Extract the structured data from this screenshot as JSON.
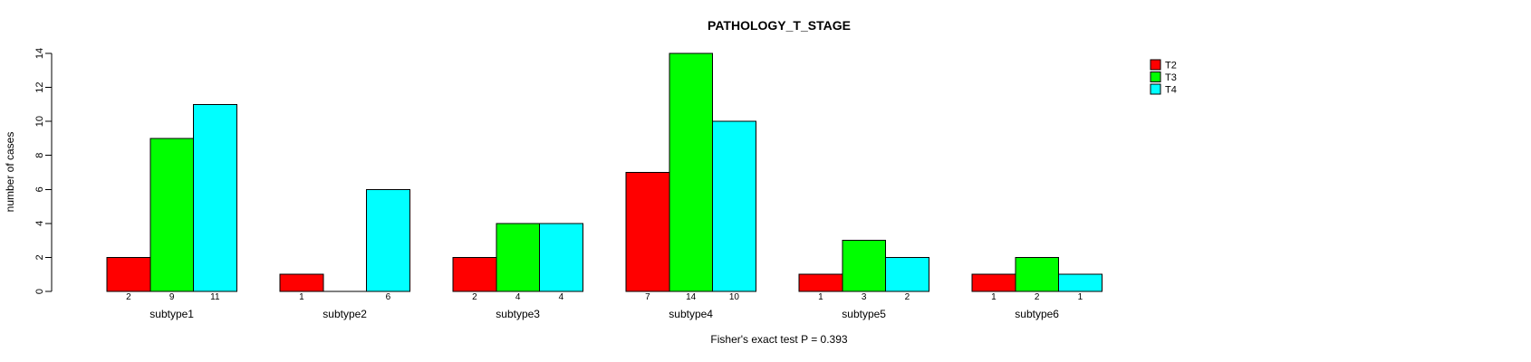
{
  "chart_data": {
    "type": "bar",
    "title": "PATHOLOGY_T_STAGE",
    "xlabel": "",
    "ylabel": "number of cases",
    "annotation": "Fisher's exact test P = 0.393",
    "categories": [
      "subtype1",
      "subtype2",
      "subtype3",
      "subtype4",
      "subtype5",
      "subtype6"
    ],
    "series": [
      {
        "name": "T2",
        "color": "#ff0000",
        "values": [
          2,
          1,
          2,
          7,
          1,
          1
        ]
      },
      {
        "name": "T3",
        "color": "#00ff00",
        "values": [
          9,
          0,
          4,
          14,
          3,
          2
        ]
      },
      {
        "name": "T4",
        "color": "#00ffff",
        "values": [
          11,
          6,
          4,
          10,
          2,
          1
        ]
      }
    ],
    "ylim": [
      0,
      14
    ],
    "yticks": [
      0,
      2,
      4,
      6,
      8,
      10,
      12,
      14
    ],
    "grid": false,
    "legend_position": "top-right",
    "bar_value_labels": true,
    "bar_border_color": "#000000",
    "axis_color": "#000000"
  }
}
